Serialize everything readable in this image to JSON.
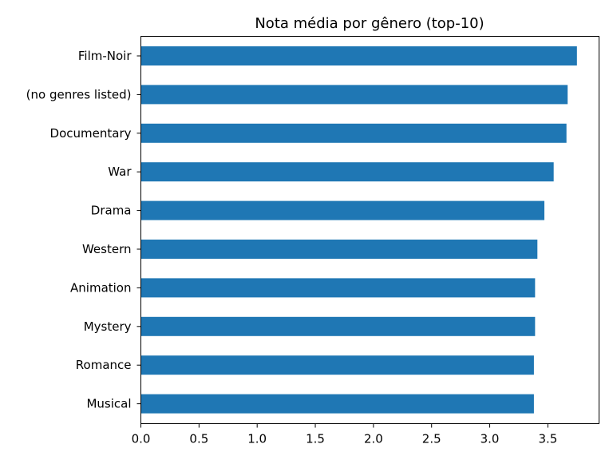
{
  "chart_data": {
    "type": "bar",
    "orientation": "horizontal",
    "title": "Nota média por gênero (top-10)",
    "xlabel": "",
    "ylabel": "",
    "categories": [
      "Film-Noir",
      "(no genres listed)",
      "Documentary",
      "War",
      "Drama",
      "Western",
      "Animation",
      "Mystery",
      "Romance",
      "Musical"
    ],
    "values": [
      3.75,
      3.67,
      3.66,
      3.55,
      3.47,
      3.41,
      3.39,
      3.39,
      3.38,
      3.38
    ],
    "xlim": [
      0,
      3.94
    ],
    "xticks": [
      "0.0",
      "0.5",
      "1.0",
      "1.5",
      "2.0",
      "2.5",
      "3.0",
      "3.5"
    ],
    "grid": false,
    "colors": {
      "bar": "#1f77b4"
    }
  }
}
